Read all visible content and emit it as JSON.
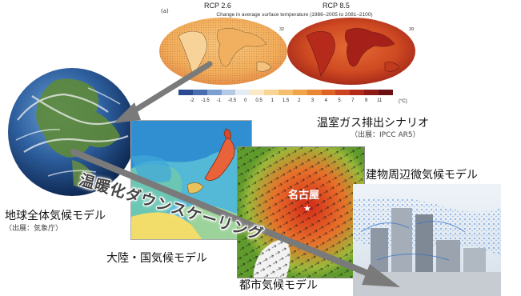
{
  "ipcc_panel": {
    "tag": "(a)",
    "left_title": "RCP 2.6",
    "right_title": "RCP 8.5",
    "subtitle": "Change in average surface temperature (1986–2005 to 2081–2100)",
    "left_count": "32",
    "right_count": "39",
    "colorbar_labels": [
      "-2",
      "-1.5",
      "-1",
      "-0.5",
      "0",
      "0.5",
      "1",
      "1.5",
      "2",
      "3",
      "4",
      "5",
      "7",
      "9",
      "11"
    ],
    "colorbar_unit": "(°C)",
    "colorbar_colors": [
      "#2b4a8f",
      "#4a6fb0",
      "#7d9fd0",
      "#b4c9e6",
      "#e6ecf4",
      "#fbe9c6",
      "#f8d595",
      "#f5be6a",
      "#f0a44a",
      "#e98634",
      "#de6426",
      "#cc4420",
      "#b3291a",
      "#8e1a16",
      "#6a0f12"
    ]
  },
  "labels": {
    "scenario": "温室ガス排出シナリオ",
    "scenario_source": "（出展：IPCC AR5）",
    "global_model": "地球全体気候モデル",
    "global_source": "（出展：気象庁）",
    "continental_model": "大陸・国気候モデル",
    "city_model": "都市気候モデル",
    "building_model": "建物周辺微気候モデル",
    "nagoya": "名古屋",
    "nagoya_star": "★",
    "downscaling": "温暖化ダウンスケーリング"
  },
  "colors": {
    "arrow": "#7a7a7a",
    "map_warm_light": "#f4b766",
    "map_warm_dark": "#c94a1f",
    "ocean": "#53b9d6",
    "vegetation": "#6c9c2e"
  }
}
